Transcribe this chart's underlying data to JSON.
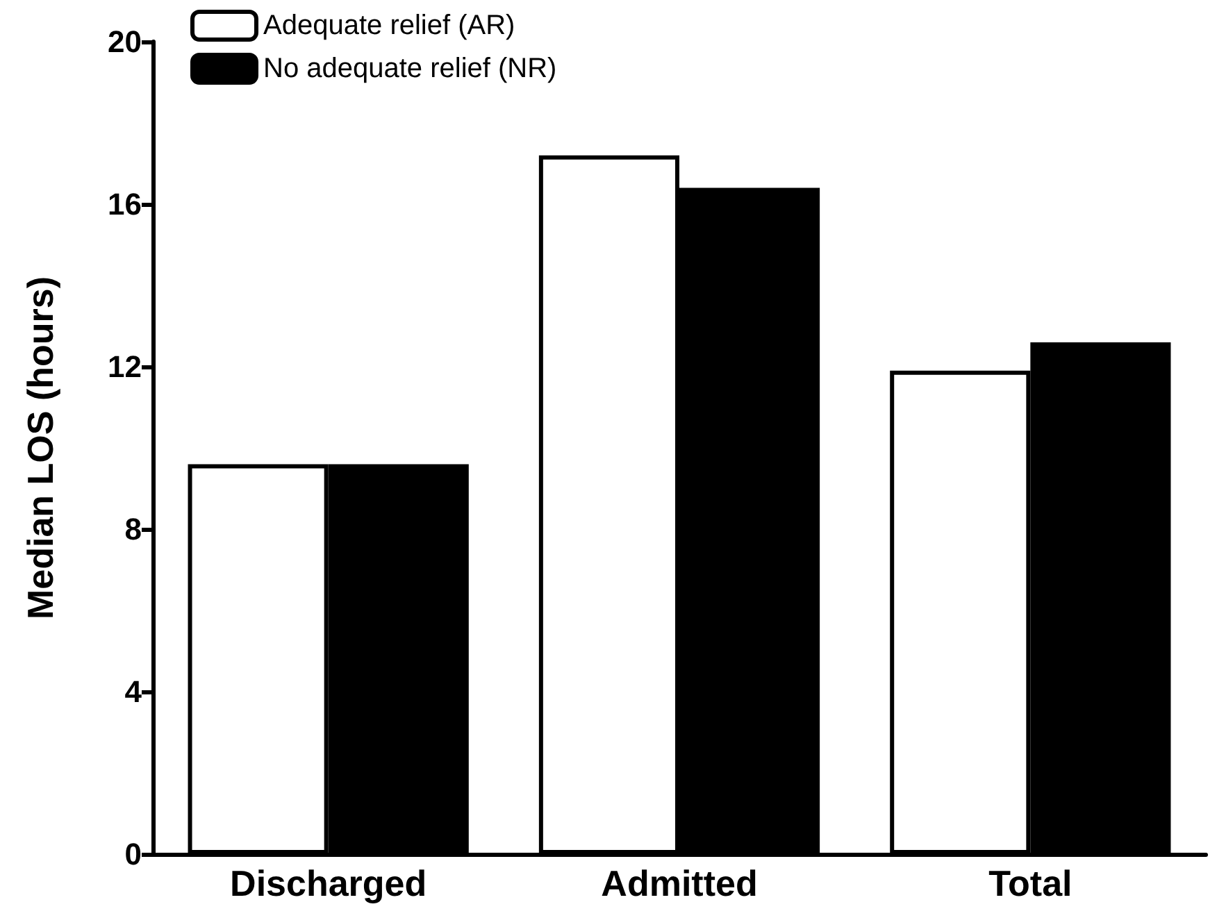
{
  "chart_data": {
    "type": "bar",
    "ylabel": "Median LOS (hours)",
    "categories": [
      "Discharged",
      "Admitted",
      "Total"
    ],
    "series": [
      {
        "name": "Adequate relief (AR)",
        "color": "#ffffff",
        "values": [
          9.6,
          17.2,
          11.9
        ]
      },
      {
        "name": "No adequate relief (NR)",
        "color": "#000000",
        "values": [
          9.6,
          16.4,
          12.6
        ]
      }
    ],
    "ylim": [
      0,
      20
    ],
    "yticks": [
      0,
      4,
      8,
      12,
      16,
      20
    ],
    "grid": false,
    "legend": "top left"
  }
}
